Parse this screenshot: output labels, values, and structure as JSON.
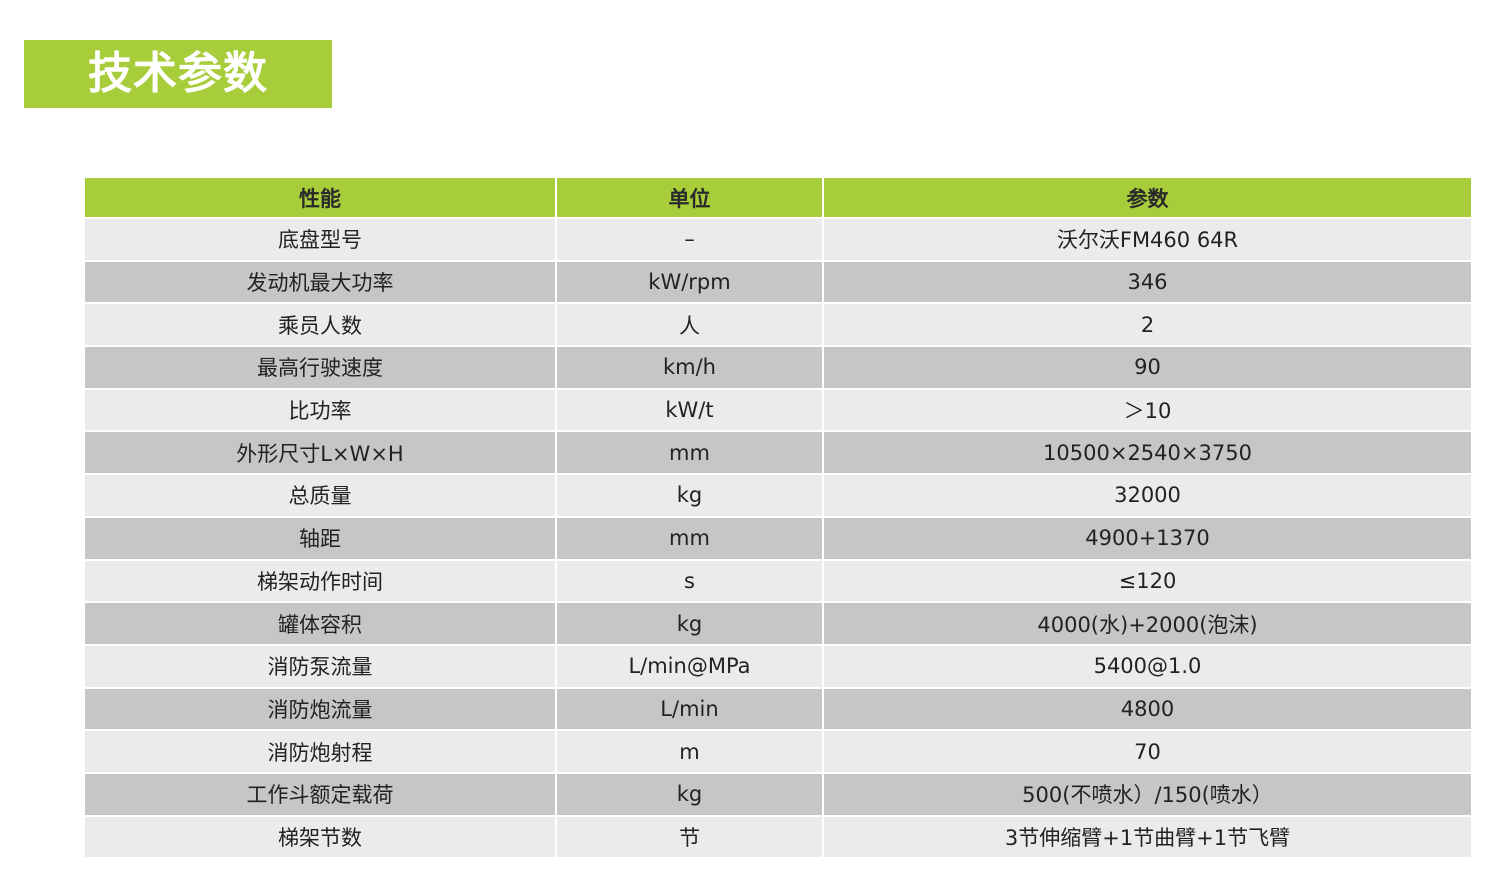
{
  "title": "技术参数",
  "colors": {
    "accent": "#a8cd3a",
    "row_light": "#ebebed",
    "row_dark": "#c6c6c8"
  },
  "table": {
    "headers": [
      "性能",
      "单位",
      "参数"
    ],
    "rows": [
      [
        "底盘型号",
        "–",
        "沃尔沃FM460 64R"
      ],
      [
        "发动机最大功率",
        "kW/rpm",
        "346"
      ],
      [
        "乘员人数",
        "人",
        "2"
      ],
      [
        "最高行驶速度",
        "km/h",
        "90"
      ],
      [
        "比功率",
        "kW/t",
        "＞10"
      ],
      [
        "外形尺寸L×W×H",
        "mm",
        "10500×2540×3750"
      ],
      [
        "总质量",
        "kg",
        "32000"
      ],
      [
        "轴距",
        "mm",
        "4900+1370"
      ],
      [
        "梯架动作时间",
        "s",
        "≤120"
      ],
      [
        "罐体容积",
        "kg",
        "4000(水)+2000(泡沫)"
      ],
      [
        "消防泵流量",
        "L/min@MPa",
        "5400@1.0"
      ],
      [
        "消防炮流量",
        "L/min",
        "4800"
      ],
      [
        "消防炮射程",
        "m",
        "70"
      ],
      [
        "工作斗额定载荷",
        "kg",
        "500(不喷水）/150(喷水）"
      ],
      [
        "梯架节数",
        "节",
        "3节伸缩臂+1节曲臂+1节飞臂"
      ]
    ]
  }
}
